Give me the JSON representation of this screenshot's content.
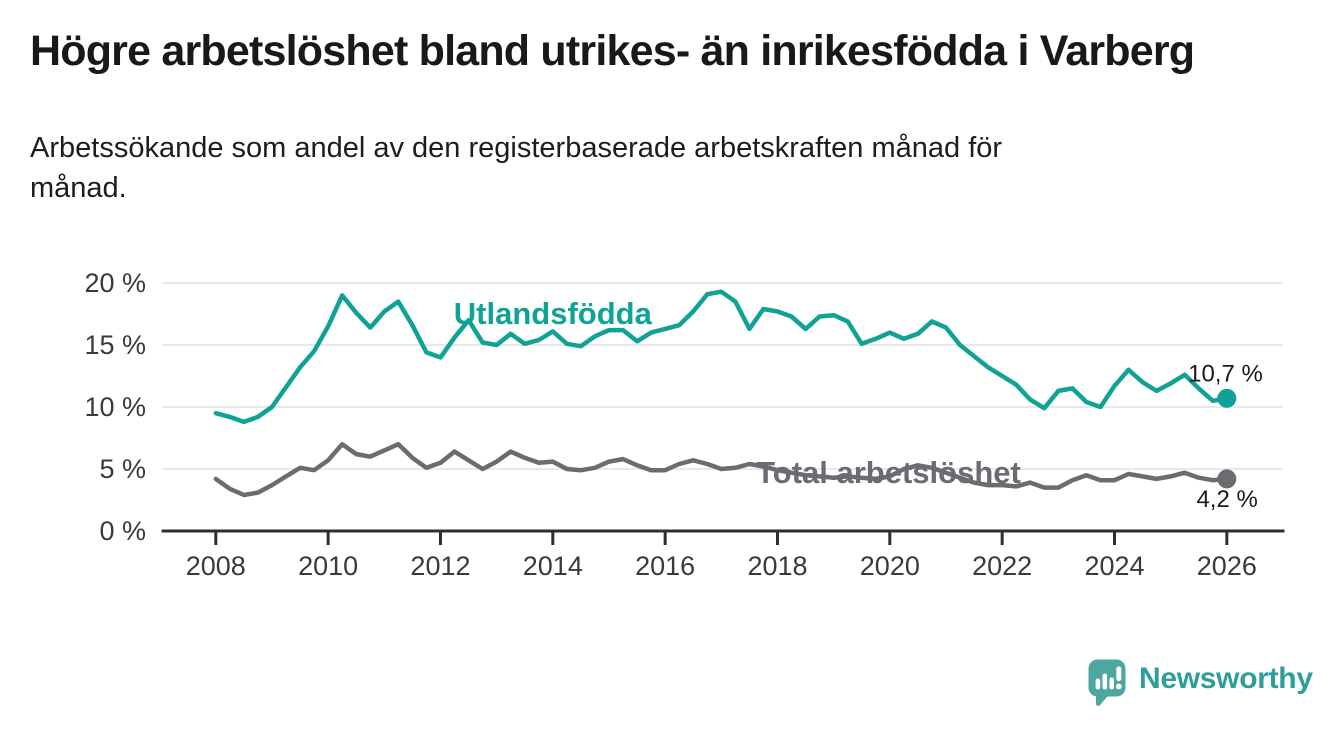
{
  "header": {
    "title": "Högre arbetslöshet bland utrikes- än inrikesfödda i Varberg",
    "subtitle_lines": [
      "Arbetssökande som andel av den registerbaserade arbetskraften månad för",
      "månad."
    ]
  },
  "chart_data": {
    "type": "line",
    "unit": "%",
    "grid": "horizontal-only",
    "legend_position": "inline-labels-on-lines",
    "axis_color": "#2e2e2c",
    "grid_color": "#e0e0e0",
    "tick_label_color": "#3a3a3a",
    "annotation_color": "#1a1a1a",
    "ylim": [
      0,
      20
    ],
    "xlim": [
      2007.06,
      2027.0
    ],
    "y_ticks": [
      {
        "value": 20,
        "label": "20 %"
      },
      {
        "value": 15,
        "label": "15 %"
      },
      {
        "value": 10,
        "label": "10 %"
      },
      {
        "value": 5,
        "label": "5 %"
      },
      {
        "value": 0,
        "label": "0 %"
      }
    ],
    "x_ticks": [
      {
        "value": 2008,
        "label": "2008"
      },
      {
        "value": 2010,
        "label": "2010"
      },
      {
        "value": 2012,
        "label": "2012"
      },
      {
        "value": 2014,
        "label": "2014"
      },
      {
        "value": 2016,
        "label": "2016"
      },
      {
        "value": 2018,
        "label": "2018"
      },
      {
        "value": 2020,
        "label": "2020"
      },
      {
        "value": 2022,
        "label": "2022"
      },
      {
        "value": 2024,
        "label": "2024"
      },
      {
        "value": 2026,
        "label": "2026"
      }
    ],
    "x_years": [
      2008,
      2008.25,
      2008.5,
      2008.75,
      2009,
      2009.25,
      2009.5,
      2009.75,
      2010,
      2010.25,
      2010.5,
      2010.75,
      2011,
      2011.25,
      2011.5,
      2011.75,
      2012,
      2012.25,
      2012.5,
      2012.75,
      2013,
      2013.25,
      2013.5,
      2013.75,
      2014,
      2014.25,
      2014.5,
      2014.75,
      2015,
      2015.25,
      2015.5,
      2015.75,
      2016,
      2016.25,
      2016.5,
      2016.75,
      2017,
      2017.25,
      2017.5,
      2017.75,
      2018,
      2018.25,
      2018.5,
      2018.75,
      2019,
      2019.25,
      2019.5,
      2019.75,
      2020,
      2020.25,
      2020.5,
      2020.75,
      2021,
      2021.25,
      2021.5,
      2021.75,
      2022,
      2022.25,
      2022.5,
      2022.75,
      2023,
      2023.25,
      2023.5,
      2023.75,
      2024,
      2024.25,
      2024.5,
      2024.75,
      2025,
      2025.25,
      2025.5,
      2025.75,
      2026
    ],
    "series": [
      {
        "name": "Utlandsfödda",
        "color": "#11a296",
        "end_value_label": "10,7 %",
        "end_value": 10.7,
        "end_label_position": "above",
        "name_label": {
          "x": 2014.0,
          "y": 17.6,
          "anchor": "middle"
        },
        "values": [
          9.5,
          9.2,
          8.8,
          9.2,
          10.0,
          11.6,
          13.2,
          14.5,
          16.5,
          19.0,
          17.6,
          16.4,
          17.7,
          18.5,
          16.6,
          14.4,
          14.0,
          15.6,
          17.0,
          15.2,
          15.0,
          15.9,
          15.1,
          15.4,
          16.1,
          15.1,
          14.9,
          15.7,
          16.2,
          16.2,
          15.3,
          16.0,
          16.3,
          16.6,
          17.7,
          19.1,
          19.3,
          18.5,
          16.3,
          17.9,
          17.7,
          17.3,
          16.3,
          17.3,
          17.4,
          16.9,
          15.1,
          15.5,
          16.0,
          15.5,
          15.9,
          16.9,
          16.4,
          15.0,
          14.1,
          13.2,
          12.5,
          11.8,
          10.6,
          9.9,
          11.3,
          11.5,
          10.4,
          10.0,
          11.7,
          13.0,
          12.0,
          11.3,
          11.9,
          12.6,
          11.5,
          10.5,
          10.7
        ]
      },
      {
        "name": "Total arbetslöshet",
        "color": "#6e6a72",
        "end_value_label": "4,2 %",
        "end_value": 4.2,
        "end_label_position": "below",
        "name_label": {
          "x": 2017.62,
          "y": 4.75,
          "anchor": "start"
        },
        "values": [
          4.2,
          3.4,
          2.9,
          3.1,
          3.7,
          4.4,
          5.1,
          4.9,
          5.7,
          7.0,
          6.2,
          6.0,
          6.5,
          7.0,
          5.9,
          5.1,
          5.5,
          6.4,
          5.7,
          5.0,
          5.6,
          6.4,
          5.9,
          5.5,
          5.6,
          5.0,
          4.9,
          5.1,
          5.6,
          5.8,
          5.3,
          4.9,
          4.9,
          5.4,
          5.7,
          5.4,
          5.0,
          5.1,
          5.4,
          5.2,
          4.9,
          4.7,
          4.5,
          4.4,
          4.3,
          4.4,
          4.3,
          4.2,
          4.4,
          5.0,
          5.3,
          5.1,
          4.7,
          4.3,
          3.9,
          3.7,
          3.7,
          3.6,
          3.9,
          3.5,
          3.5,
          4.1,
          4.5,
          4.1,
          4.1,
          4.6,
          4.4,
          4.2,
          4.4,
          4.7,
          4.3,
          4.1,
          4.2
        ]
      }
    ]
  },
  "footer": {
    "brand": "Newsworthy",
    "brand_color": "#2d9e99",
    "logo_color": "#4ca7a1",
    "logo_icon": "bar-chart-speech-bubble-icon"
  }
}
